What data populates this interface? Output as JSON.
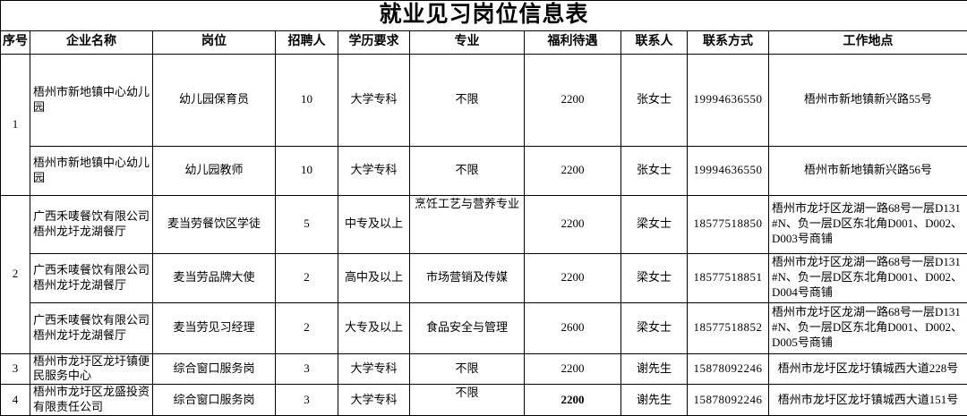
{
  "title": "就业见习岗位信息表",
  "table": {
    "headers": [
      "序号",
      "企业名称",
      "岗位",
      "招聘人",
      "学历要求",
      "专业",
      "福利待遇",
      "联系人",
      "联系方式",
      "工作地点"
    ],
    "groups": [
      {
        "no": "1",
        "rows": [
          {
            "company": "梧州市新地镇中心幼儿园",
            "position": "幼儿园保育员",
            "headcount": "10",
            "education": "大学专科",
            "major": "不限",
            "salary": "2200",
            "contact": "张女士",
            "phone": "19994636550",
            "location": "梧州市新地镇新兴路55号"
          },
          {
            "company": "梧州市新地镇中心幼儿园",
            "position": "幼儿园教师",
            "headcount": "10",
            "education": "大学专科",
            "major": "不限",
            "salary": "2200",
            "contact": "张女士",
            "phone": "19994636550",
            "location": "梧州市新地镇新兴路56号"
          }
        ]
      },
      {
        "no": "2",
        "rows": [
          {
            "company": "广西禾唛餐饮有限公司梧州龙圩龙湖餐厅",
            "position": "麦当劳餐饮区学徒",
            "headcount": "5",
            "education": "中专及以上",
            "major": "烹饪工艺与营养专业",
            "salary": "2200",
            "contact": "梁女士",
            "phone": "18577518850",
            "location": "梧州市龙圩区龙湖一路68号一层D131#N、负一层D区东北角D001、D002、D003号商铺"
          },
          {
            "company": "广西禾唛餐饮有限公司梧州龙圩龙湖餐厅",
            "position": "麦当劳品牌大使",
            "headcount": "2",
            "education": "高中及以上",
            "major": "市场营销及传媒",
            "salary": "2200",
            "contact": "梁女士",
            "phone": "18577518851",
            "location": "梧州市龙圩区龙湖一路68号一层D131#N、负一层D区东北角D001、D002、D004号商铺"
          },
          {
            "company": "广西禾唛餐饮有限公司梧州龙圩龙湖餐厅",
            "position": "麦当劳见习经理",
            "headcount": "2",
            "education": "大专及以上",
            "major": "食品安全与管理",
            "salary": "2600",
            "contact": "梁女士",
            "phone": "18577518852",
            "location": "梧州市龙圩区龙湖一路68号一层D131#N、负一层D区东北角D001、D002、D005号商铺"
          }
        ]
      },
      {
        "no": "3",
        "rows": [
          {
            "company": "梧州市龙圩区龙圩镇便民服务中心",
            "position": "综合窗口服务岗",
            "headcount": "3",
            "education": "大学专科",
            "major": "不限",
            "salary": "2200",
            "contact": "谢先生",
            "phone": "15878092246",
            "location": "梧州市龙圩区龙圩镇城西大道228号"
          }
        ]
      },
      {
        "no": "4",
        "rows": [
          {
            "company": "梧州市龙圩区龙盛投资有限责任公司",
            "position": "综合窗口服务岗",
            "headcount": "3",
            "education": "大学专科",
            "major": "不限",
            "salary": "2200",
            "contact": "谢先生",
            "phone": "15878092246",
            "location": "梧州市龙圩区龙圩镇城西大道151号"
          }
        ]
      }
    ]
  }
}
